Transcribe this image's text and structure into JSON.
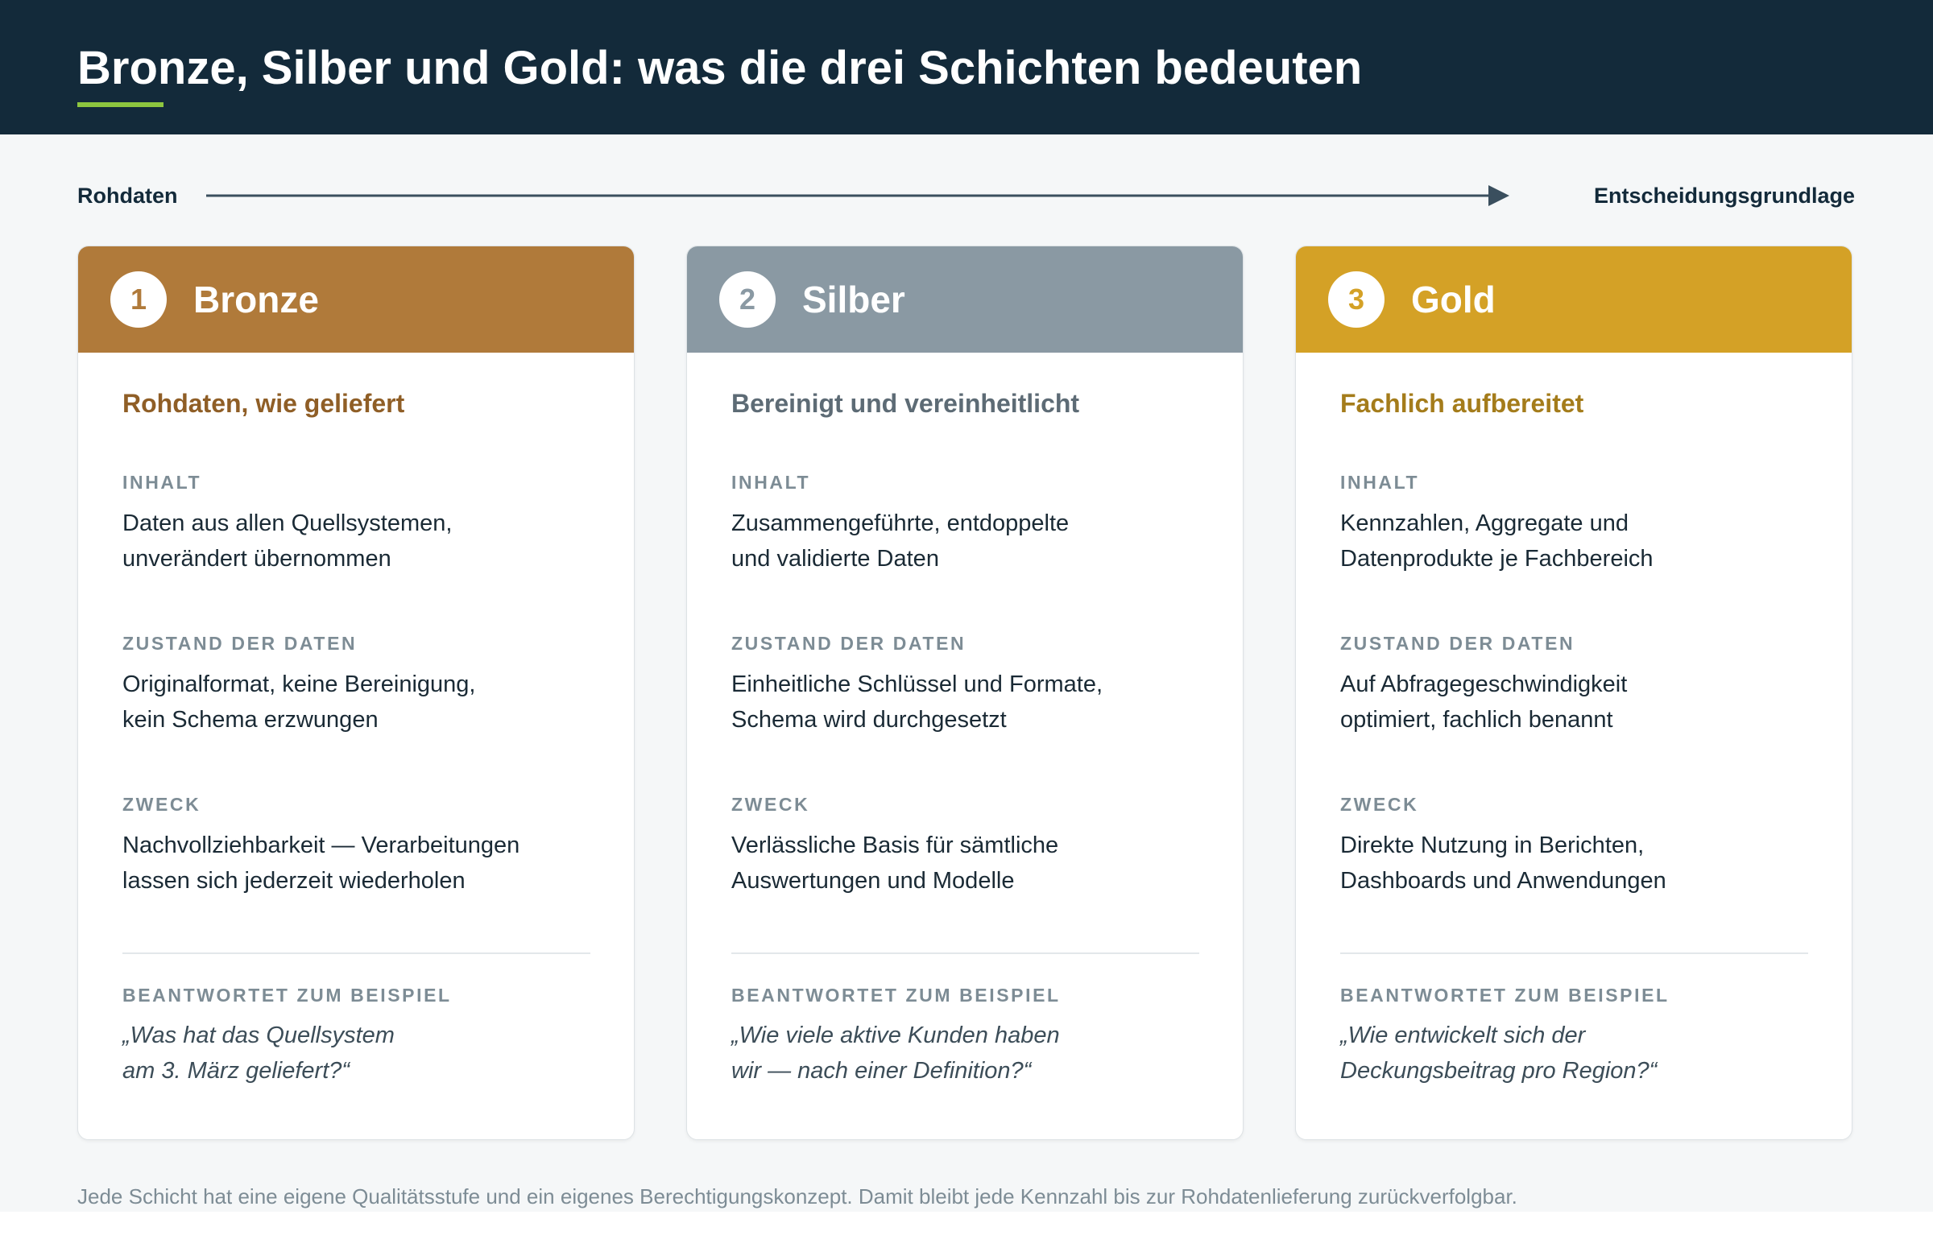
{
  "header": {
    "title": "Bronze, Silber und Gold: was die drei Schichten bedeuten"
  },
  "flow": {
    "start": "Rohdaten",
    "end": "Entscheidungsgrundlage"
  },
  "cards": [
    {
      "number": "1",
      "name": "Bronze",
      "subtitle": "Rohdaten, wie geliefert",
      "color": "#b07a3a",
      "accent": "#8f5e26",
      "sections": [
        {
          "label": "INHALT",
          "lines": [
            "Daten aus allen Quellsystemen,",
            "unverändert übernommen"
          ]
        },
        {
          "label": "ZUSTAND DER DATEN",
          "lines": [
            "Originalformat, keine Bereinigung,",
            "kein Schema erzwungen"
          ]
        },
        {
          "label": "ZWECK",
          "lines": [
            "Nachvollziehbarkeit — Verarbeitungen",
            "lassen sich jederzeit wiederholen"
          ]
        }
      ],
      "example": {
        "label": "BEANTWORTET ZUM BEISPIEL",
        "lines": [
          "„Was hat das Quellsystem",
          "am 3. März geliefert?“"
        ]
      }
    },
    {
      "number": "2",
      "name": "Silber",
      "subtitle": "Bereinigt und vereinheitlicht",
      "color": "#8a99a3",
      "accent": "#5d6b75",
      "sections": [
        {
          "label": "INHALT",
          "lines": [
            "Zusammengeführte, entdoppelte",
            "und validierte Daten"
          ]
        },
        {
          "label": "ZUSTAND DER DATEN",
          "lines": [
            "Einheitliche Schlüssel und Formate,",
            "Schema wird durchgesetzt"
          ]
        },
        {
          "label": "ZWECK",
          "lines": [
            "Verlässliche Basis für sämtliche",
            "Auswertungen und Modelle"
          ]
        }
      ],
      "example": {
        "label": "BEANTWORTET ZUM BEISPIEL",
        "lines": [
          "„Wie viele aktive Kunden haben",
          "wir — nach einer Definition?“"
        ]
      }
    },
    {
      "number": "3",
      "name": "Gold",
      "subtitle": "Fachlich aufbereitet",
      "color": "#d4a126",
      "accent": "#a47c1b",
      "sections": [
        {
          "label": "INHALT",
          "lines": [
            "Kennzahlen, Aggregate und",
            "Datenprodukte je Fachbereich"
          ]
        },
        {
          "label": "ZUSTAND DER DATEN",
          "lines": [
            "Auf Abfragegeschwindigkeit",
            "optimiert, fachlich benannt"
          ]
        },
        {
          "label": "ZWECK",
          "lines": [
            "Direkte Nutzung in Berichten,",
            "Dashboards und Anwendungen"
          ]
        }
      ],
      "example": {
        "label": "BEANTWORTET ZUM BEISPIEL",
        "lines": [
          "„Wie entwickelt sich der",
          "Deckungsbeitrag pro Region?“"
        ]
      }
    }
  ],
  "footer": {
    "note": "Jede Schicht hat eine eigene Qualitätsstufe und ein eigenes Berechtigungskonzept. Damit bleibt jede Kennzahl bis zur Rohdatenlieferung zurückverfolgbar."
  }
}
